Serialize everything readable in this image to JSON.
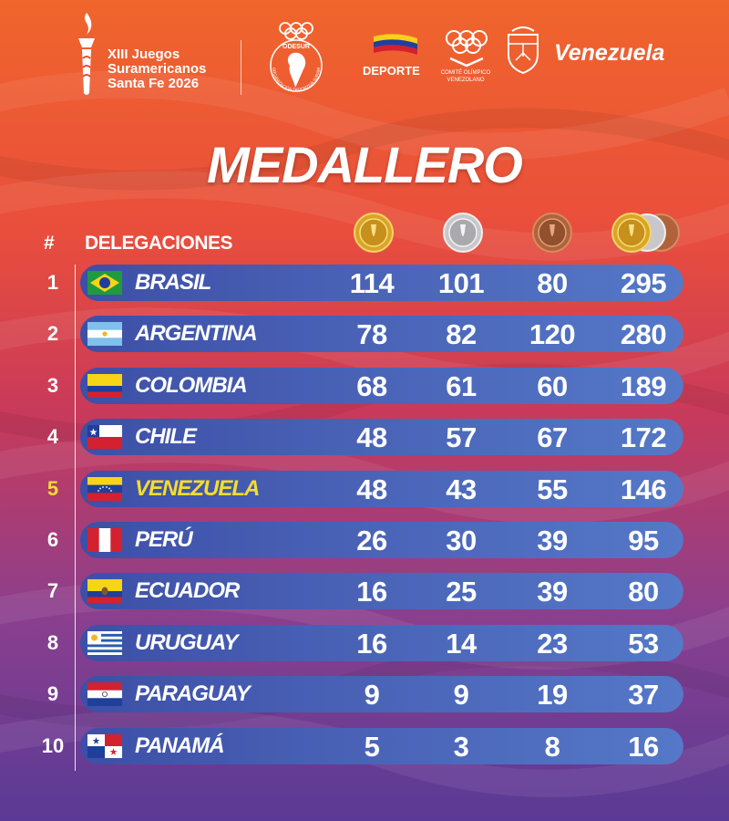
{
  "header": {
    "games_title_lines": [
      "XIII Juegos",
      "Suramericanos",
      "Santa Fe 2026"
    ],
    "odesur_label": "ODESUR",
    "odesur_ring_text": "ORGANIZACIÓN DEPORTIVA SURAMERICANA",
    "deporte_label": "DEPORTE",
    "coven_label": "COMITÉ OLÍMPICO VENEZOLANO",
    "venezuela_brand": "Venezuela"
  },
  "title": "MEDALLERO",
  "columns": {
    "rank": "#",
    "delegation": "DELEGACIONES",
    "medal_icons": [
      "gold-medal-icon",
      "silver-medal-icon",
      "bronze-medal-icon",
      "total-medals-icon"
    ]
  },
  "colors": {
    "highlight": "#f6dc2e",
    "row_bar": "#4a64b8"
  },
  "rows": [
    {
      "rank": "1",
      "country": "BRASIL",
      "flag": "brazil-flag-icon",
      "gold": "114",
      "silver": "101",
      "bronze": "80",
      "total": "295"
    },
    {
      "rank": "2",
      "country": "ARGENTINA",
      "flag": "argentina-flag-icon",
      "gold": "78",
      "silver": "82",
      "bronze": "120",
      "total": "280"
    },
    {
      "rank": "3",
      "country": "COLOMBIA",
      "flag": "colombia-flag-icon",
      "gold": "68",
      "silver": "61",
      "bronze": "60",
      "total": "189"
    },
    {
      "rank": "4",
      "country": "CHILE",
      "flag": "chile-flag-icon",
      "gold": "48",
      "silver": "57",
      "bronze": "67",
      "total": "172"
    },
    {
      "rank": "5",
      "country": "VENEZUELA",
      "flag": "venezuela-flag-icon",
      "gold": "48",
      "silver": "43",
      "bronze": "55",
      "total": "146",
      "highlight": true
    },
    {
      "rank": "6",
      "country": "PERÚ",
      "flag": "peru-flag-icon",
      "gold": "26",
      "silver": "30",
      "bronze": "39",
      "total": "95"
    },
    {
      "rank": "7",
      "country": "ECUADOR",
      "flag": "ecuador-flag-icon",
      "gold": "16",
      "silver": "25",
      "bronze": "39",
      "total": "80"
    },
    {
      "rank": "8",
      "country": "URUGUAY",
      "flag": "uruguay-flag-icon",
      "gold": "16",
      "silver": "14",
      "bronze": "23",
      "total": "53"
    },
    {
      "rank": "9",
      "country": "PARAGUAY",
      "flag": "paraguay-flag-icon",
      "gold": "9",
      "silver": "9",
      "bronze": "19",
      "total": "37"
    },
    {
      "rank": "10",
      "country": "PANAMÁ",
      "flag": "panama-flag-icon",
      "gold": "5",
      "silver": "3",
      "bronze": "8",
      "total": "16"
    }
  ]
}
